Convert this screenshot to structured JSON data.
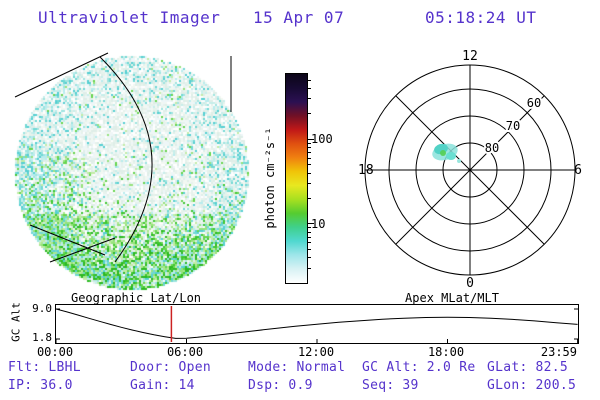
{
  "header": {
    "title": "Ultraviolet Imager",
    "date": "15 Apr 07",
    "time": "05:18:24 UT"
  },
  "colors": {
    "text_accent": "#5533cc",
    "marker_red": "#cc2222"
  },
  "colorbar": {
    "label": "photon cm⁻²s⁻¹",
    "tick_100": "100",
    "tick_10": "10"
  },
  "polar": {
    "mlt_top": "12",
    "mlt_left": "18",
    "mlt_right": "6",
    "mlt_bottom": "0",
    "ring_60": "60",
    "ring_70": "70",
    "ring_80": "80"
  },
  "strip": {
    "left_title": "Geographic Lat/Lon",
    "right_title": "Apex MLat/MLT",
    "ylabel": "GC Alt",
    "ytick_top": "9.0",
    "ytick_bottom": "1.8",
    "xticks": [
      "00:00",
      "06:00",
      "12:00",
      "18:00",
      "23:59"
    ]
  },
  "status": {
    "items": [
      {
        "label": "Flt:",
        "value": "LBHL"
      },
      {
        "label": "Door:",
        "value": "Open"
      },
      {
        "label": "Mode:",
        "value": "Normal"
      },
      {
        "label": "GC Alt:",
        "value": "2.0 Re"
      },
      {
        "label": "GLat:",
        "value": "82.5"
      },
      {
        "label": "IP:",
        "value": "36.0"
      },
      {
        "label": "Gain:",
        "value": "14"
      },
      {
        "label": "Dsp:",
        "value": "0.9"
      },
      {
        "label": "Seq:",
        "value": "39"
      },
      {
        "label": "GLon:",
        "value": "200.5"
      }
    ]
  },
  "chart_data": [
    {
      "type": "heatmap",
      "name": "uv_disk_image",
      "description": "Ultraviolet Earth-disk image: faint white/pale speckled emission over most of the disk, cyan speckles near the limb and left side, bright green emission band across the lower part of the disk; black geographic lat/lon grid lines overlaid.",
      "units": "photon cm⁻²s⁻¹",
      "value_range_approx": [
        1,
        30
      ],
      "palette": {
        "whites": [
          "#ffffff",
          "#f2f8f2",
          "#e6f2ec",
          "#eef6f8",
          "#dfeee8"
        ],
        "cyans": [
          "#c6eeea",
          "#9de4e0",
          "#70d8d4",
          "#b8ecee",
          "#55cfd2"
        ],
        "greens": [
          "#c2eca6",
          "#96e27c",
          "#66d54e",
          "#3fc732",
          "#aae890",
          "#2bb822"
        ]
      }
    },
    {
      "type": "colorbar",
      "scale": "log",
      "unit": "photon cm⁻²s⁻¹",
      "tick_values": [
        10,
        100
      ],
      "p100": 31.5,
      "p10": 72,
      "gradient_top_to_bottom": [
        "#0c0618",
        "#170a33",
        "#2b1052",
        "#701026",
        "#c01818",
        "#e05010",
        "#f08010",
        "#f0c408",
        "#e8e820",
        "#a8e020",
        "#55cc30",
        "#3fd08c",
        "#50d8d0",
        "#9fe6ea",
        "#d8f2f4",
        "#ffffff"
      ]
    },
    {
      "type": "polar",
      "name": "apex_mlat_mlt",
      "rings_mlat": [
        80,
        70,
        60,
        50
      ],
      "mlt_labels": {
        "top": "12",
        "left": "18",
        "right": "6",
        "bottom": "0"
      },
      "aurora_patch": {
        "mlat_approx": 79,
        "mlt_approx": 13,
        "colors": [
          "cyan",
          "teal",
          "green"
        ]
      }
    },
    {
      "type": "line",
      "name": "gc_alt_vs_time",
      "ylabel": "GC Alt",
      "y_units": "Re",
      "ylim": [
        1.8,
        9.0
      ],
      "x_hours": [
        0,
        0.5,
        1,
        1.5,
        2,
        2.5,
        3,
        3.5,
        4,
        4.5,
        5,
        5.5,
        6,
        6.5,
        7,
        8,
        9,
        10,
        11,
        12,
        13,
        14,
        15,
        16,
        17,
        18,
        19,
        20,
        21,
        22,
        23,
        23.983
      ],
      "gc_alt_re": [
        9.0,
        8.3,
        7.55,
        6.8,
        6.05,
        5.3,
        4.6,
        3.95,
        3.35,
        2.8,
        2.35,
        1.95,
        2.0,
        2.2,
        2.5,
        3.1,
        3.7,
        4.3,
        4.85,
        5.35,
        5.8,
        6.2,
        6.55,
        6.8,
        6.95,
        7.0,
        6.95,
        6.8,
        6.5,
        6.15,
        5.7,
        5.3
      ],
      "marker_hour": 5.305,
      "marker_color": "#cc2222",
      "xtick_labels": [
        "00:00",
        "06:00",
        "12:00",
        "18:00",
        "23:59"
      ]
    }
  ]
}
